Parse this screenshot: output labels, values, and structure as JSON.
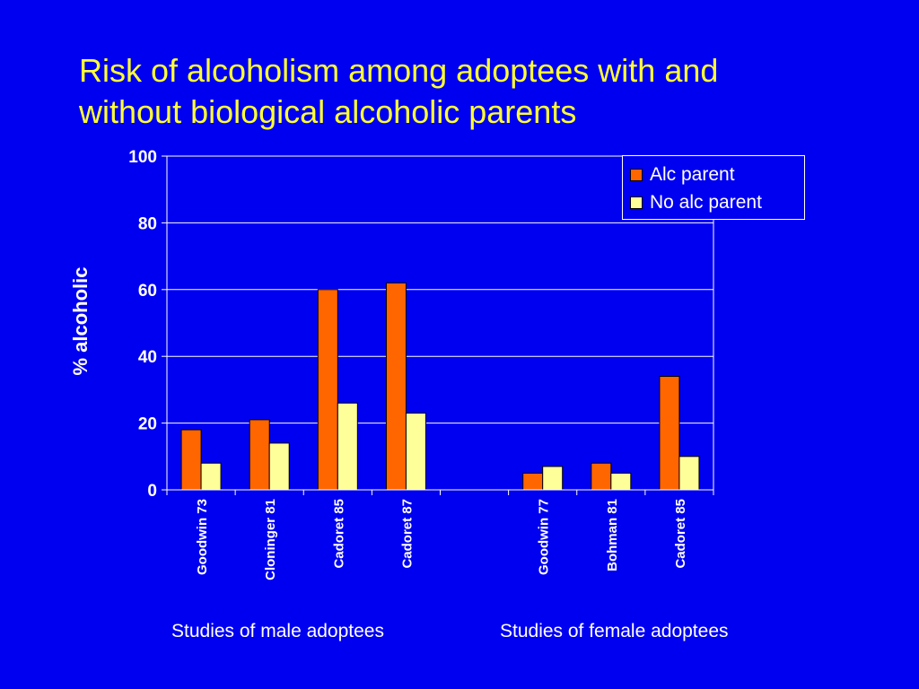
{
  "slide": {
    "title_line1": "Risk of alcoholism among adoptees with and",
    "title_line2": "without biological alcoholic parents",
    "group_male": "Studies of male adoptees",
    "group_female": "Studies of female adoptees",
    "background_color": "#0000f0",
    "title_color": "#ffff33"
  },
  "chart_data": {
    "type": "bar",
    "title": "Risk of alcoholism among adoptees with and without biological alcoholic parents",
    "xlabel": "",
    "ylabel": "% alcoholic",
    "ylim": [
      0,
      100
    ],
    "yticks": [
      0,
      20,
      40,
      60,
      80,
      100
    ],
    "grid": true,
    "legend_position": "top-right",
    "categories": [
      "Goodwin 73",
      "Cloninger 81",
      "Cadoret 85",
      "Cadoret 87",
      "",
      "Goodwin 77",
      "Bohman 81",
      "Cadoret 85"
    ],
    "series": [
      {
        "name": "Alc parent",
        "color": "#ff6600",
        "values": [
          18,
          21,
          60,
          62,
          null,
          5,
          8,
          34
        ]
      },
      {
        "name": "No alc parent",
        "color": "#ffff99",
        "values": [
          8,
          14,
          26,
          23,
          null,
          7,
          5,
          10
        ]
      }
    ]
  }
}
